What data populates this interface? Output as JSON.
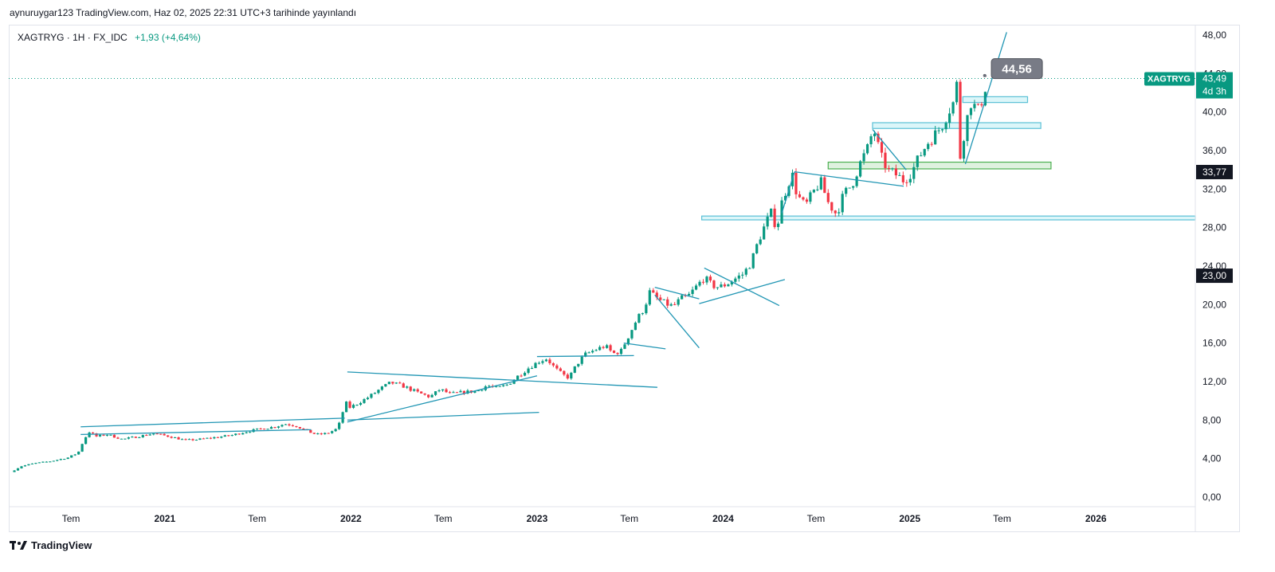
{
  "header": {
    "caption": "aynuruygar123 TradingView.com, Haz 02, 2025 22:31 UTC+3 tarihinde yayınlandı"
  },
  "legend": {
    "symbol_info": "XAGTRYG · 1H · FX_IDC",
    "change": "+1,93 (+4,64%)"
  },
  "footer": {
    "brand": "TradingView"
  },
  "chart_data": {
    "type": "candlestick",
    "symbol": "XAGTRYG",
    "interval": "1H",
    "source": "FX_IDC",
    "y_axis": {
      "ticks": [
        "0,00",
        "4,00",
        "8,00",
        "12,00",
        "16,00",
        "20,00",
        "24,00",
        "28,00",
        "32,00",
        "36,00",
        "40,00",
        "44,00",
        "48,00"
      ],
      "range": [
        -1,
        49
      ]
    },
    "x_axis": {
      "ticks": [
        "Tem",
        "2021",
        "Tem",
        "2022",
        "Tem",
        "2023",
        "Tem",
        "2024",
        "Tem",
        "2025",
        "Tem",
        "2026"
      ],
      "range": [
        "2020-03-01",
        "2026-07-15"
      ]
    },
    "last_price": {
      "symbol": "XAGTRYG",
      "value": "43,49",
      "countdown": "4d 3h"
    },
    "price_labels": [
      "33,77",
      "23,00"
    ],
    "callout": "44,56",
    "colors": {
      "up": "#089981",
      "down": "#f23645",
      "drawing": "#2196b4",
      "zone": "#b2ebf2",
      "green_zone": "#4caf50",
      "last_price": "#089981"
    },
    "closes": [
      {
        "t": "2020-03-05",
        "v": 2.6
      },
      {
        "t": "2020-03-25",
        "v": 3.2
      },
      {
        "t": "2020-04-20",
        "v": 3.5
      },
      {
        "t": "2020-05-20",
        "v": 3.7
      },
      {
        "t": "2020-06-25",
        "v": 4.1
      },
      {
        "t": "2020-07-15",
        "v": 4.6
      },
      {
        "t": "2020-07-25",
        "v": 5.8
      },
      {
        "t": "2020-08-05",
        "v": 6.8
      },
      {
        "t": "2020-08-20",
        "v": 6.3
      },
      {
        "t": "2020-09-10",
        "v": 6.5
      },
      {
        "t": "2020-10-10",
        "v": 6.0
      },
      {
        "t": "2020-11-10",
        "v": 6.3
      },
      {
        "t": "2020-12-10",
        "v": 6.6
      },
      {
        "t": "2021-01-10",
        "v": 6.3
      },
      {
        "t": "2021-02-10",
        "v": 5.9
      },
      {
        "t": "2021-03-10",
        "v": 6.0
      },
      {
        "t": "2021-04-10",
        "v": 6.2
      },
      {
        "t": "2021-05-10",
        "v": 6.4
      },
      {
        "t": "2021-06-10",
        "v": 6.8
      },
      {
        "t": "2021-07-10",
        "v": 7.1
      },
      {
        "t": "2021-08-05",
        "v": 7.3
      },
      {
        "t": "2021-08-25",
        "v": 7.6
      },
      {
        "t": "2021-09-15",
        "v": 7.4
      },
      {
        "t": "2021-10-05",
        "v": 6.9
      },
      {
        "t": "2021-10-25",
        "v": 6.5
      },
      {
        "t": "2021-11-15",
        "v": 6.6
      },
      {
        "t": "2021-12-05",
        "v": 7.1
      },
      {
        "t": "2021-12-15",
        "v": 8.4
      },
      {
        "t": "2021-12-20",
        "v": 10.6
      },
      {
        "t": "2021-12-25",
        "v": 9.2
      },
      {
        "t": "2022-01-10",
        "v": 9.6
      },
      {
        "t": "2022-02-05",
        "v": 10.4
      },
      {
        "t": "2022-03-01",
        "v": 11.3
      },
      {
        "t": "2022-03-20",
        "v": 11.9
      },
      {
        "t": "2022-04-15",
        "v": 11.5
      },
      {
        "t": "2022-05-10",
        "v": 10.9
      },
      {
        "t": "2022-06-05",
        "v": 10.4
      },
      {
        "t": "2022-06-25",
        "v": 11.2
      },
      {
        "t": "2022-07-15",
        "v": 10.7
      },
      {
        "t": "2022-08-10",
        "v": 10.9
      },
      {
        "t": "2022-09-05",
        "v": 11.0
      },
      {
        "t": "2022-09-25",
        "v": 11.6
      },
      {
        "t": "2022-10-15",
        "v": 11.3
      },
      {
        "t": "2022-11-05",
        "v": 11.7
      },
      {
        "t": "2022-11-25",
        "v": 12.6
      },
      {
        "t": "2022-12-15",
        "v": 13.4
      },
      {
        "t": "2023-01-05",
        "v": 14.1
      },
      {
        "t": "2023-01-20",
        "v": 14.4
      },
      {
        "t": "2023-02-05",
        "v": 13.4
      },
      {
        "t": "2023-02-20",
        "v": 12.7
      },
      {
        "t": "2023-03-05",
        "v": 12.4
      },
      {
        "t": "2023-03-20",
        "v": 13.8
      },
      {
        "t": "2023-04-05",
        "v": 14.8
      },
      {
        "t": "2023-04-25",
        "v": 15.3
      },
      {
        "t": "2023-05-15",
        "v": 15.7
      },
      {
        "t": "2023-05-30",
        "v": 14.9
      },
      {
        "t": "2023-06-15",
        "v": 15.2
      },
      {
        "t": "2023-07-01",
        "v": 16.9
      },
      {
        "t": "2023-07-15",
        "v": 18.4
      },
      {
        "t": "2023-07-30",
        "v": 19.6
      },
      {
        "t": "2023-08-10",
        "v": 21.3
      },
      {
        "t": "2023-08-25",
        "v": 20.6
      },
      {
        "t": "2023-09-10",
        "v": 20.1
      },
      {
        "t": "2023-09-25",
        "v": 19.8
      },
      {
        "t": "2023-10-10",
        "v": 20.6
      },
      {
        "t": "2023-10-25",
        "v": 20.9
      },
      {
        "t": "2023-11-10",
        "v": 21.9
      },
      {
        "t": "2023-11-25",
        "v": 22.8
      },
      {
        "t": "2023-12-10",
        "v": 22.0
      },
      {
        "t": "2023-12-25",
        "v": 21.8
      },
      {
        "t": "2024-01-10",
        "v": 22.2
      },
      {
        "t": "2024-01-25",
        "v": 22.7
      },
      {
        "t": "2024-02-10",
        "v": 23.2
      },
      {
        "t": "2024-02-25",
        "v": 24.4
      },
      {
        "t": "2024-03-10",
        "v": 26.6
      },
      {
        "t": "2024-03-25",
        "v": 28.5
      },
      {
        "t": "2024-04-05",
        "v": 29.6
      },
      {
        "t": "2024-04-15",
        "v": 27.8
      },
      {
        "t": "2024-04-25",
        "v": 30.6
      },
      {
        "t": "2024-05-05",
        "v": 32.2
      },
      {
        "t": "2024-05-15",
        "v": 33.6
      },
      {
        "t": "2024-05-25",
        "v": 31.4
      },
      {
        "t": "2024-06-10",
        "v": 30.2
      },
      {
        "t": "2024-06-25",
        "v": 31.6
      },
      {
        "t": "2024-07-10",
        "v": 32.8
      },
      {
        "t": "2024-07-25",
        "v": 30.6
      },
      {
        "t": "2024-08-10",
        "v": 29.4
      },
      {
        "t": "2024-08-25",
        "v": 31.5
      },
      {
        "t": "2024-09-10",
        "v": 32.5
      },
      {
        "t": "2024-09-25",
        "v": 34.6
      },
      {
        "t": "2024-10-10",
        "v": 36.2
      },
      {
        "t": "2024-10-22",
        "v": 38.3
      },
      {
        "t": "2024-11-05",
        "v": 35.4
      },
      {
        "t": "2024-11-20",
        "v": 33.9
      },
      {
        "t": "2024-12-05",
        "v": 33.5
      },
      {
        "t": "2024-12-20",
        "v": 32.9
      },
      {
        "t": "2025-01-05",
        "v": 33.8
      },
      {
        "t": "2025-01-20",
        "v": 35.4
      },
      {
        "t": "2025-02-05",
        "v": 36.8
      },
      {
        "t": "2025-02-20",
        "v": 37.7
      },
      {
        "t": "2025-03-05",
        "v": 38.6
      },
      {
        "t": "2025-03-20",
        "v": 40.3
      },
      {
        "t": "2025-04-01",
        "v": 41.4
      },
      {
        "t": "2025-04-05",
        "v": 44.3
      },
      {
        "t": "2025-04-10",
        "v": 35.4
      },
      {
        "t": "2025-04-20",
        "v": 38.6
      },
      {
        "t": "2025-05-01",
        "v": 41.0
      },
      {
        "t": "2025-05-15",
        "v": 40.2
      },
      {
        "t": "2025-05-25",
        "v": 41.6
      },
      {
        "t": "2025-06-02",
        "v": 43.5
      }
    ],
    "drawings": {
      "lines": [
        {
          "from": [
            "2020-07-20",
            6.5
          ],
          "to": [
            "2021-10-15",
            7.0
          ]
        },
        {
          "from": [
            "2020-07-20",
            7.3
          ],
          "to": [
            "2021-12-20",
            8.2
          ]
        },
        {
          "from": [
            "2021-12-25",
            7.8
          ],
          "to": [
            "2023-01-01",
            12.6
          ]
        },
        {
          "from": [
            "2021-12-25",
            13.0
          ],
          "to": [
            "2023-08-25",
            11.4
          ]
        },
        {
          "from": [
            "2021-12-25",
            8.0
          ],
          "to": [
            "2023-01-05",
            8.8
          ]
        },
        {
          "from": [
            "2023-01-01",
            14.6
          ],
          "to": [
            "2023-07-10",
            14.7
          ]
        },
        {
          "from": [
            "2023-06-20",
            16.0
          ],
          "to": [
            "2023-09-10",
            15.4
          ]
        },
        {
          "from": [
            "2023-08-20",
            21.8
          ],
          "to": [
            "2023-11-15",
            20.6
          ]
        },
        {
          "from": [
            "2023-08-20",
            21.0
          ],
          "to": [
            "2023-11-15",
            15.5
          ]
        },
        {
          "from": [
            "2023-11-15",
            20.1
          ],
          "to": [
            "2024-05-01",
            22.6
          ]
        },
        {
          "from": [
            "2023-11-25",
            23.8
          ],
          "to": [
            "2024-04-20",
            19.9
          ]
        },
        {
          "from": [
            "2024-04-25",
            29.5
          ],
          "to": [
            "2024-05-20",
            33.8
          ]
        },
        {
          "from": [
            "2024-05-20",
            33.8
          ],
          "to": [
            "2024-12-20",
            32.3
          ]
        },
        {
          "from": [
            "2024-10-20",
            38.2
          ],
          "to": [
            "2024-12-25",
            34.0
          ]
        },
        {
          "from": [
            "2025-04-20",
            34.6
          ],
          "to": [
            "2025-07-10",
            48.3
          ]
        }
      ],
      "zones": [
        {
          "from": [
            "2024-10-20",
            38.9
          ],
          "to": [
            "2025-09-15",
            38.3
          ],
          "kind": "light"
        },
        {
          "from": [
            "2024-07-25",
            34.8
          ],
          "to": [
            "2025-10-05",
            34.1
          ],
          "kind": "green"
        },
        {
          "from": [
            "2023-11-20",
            29.2
          ],
          "to": [
            "2026-07-15",
            28.8
          ],
          "kind": "light"
        },
        {
          "from": [
            "2025-04-15",
            41.6
          ],
          "to": [
            "2025-08-20",
            41.0
          ],
          "kind": "light"
        }
      ]
    }
  }
}
